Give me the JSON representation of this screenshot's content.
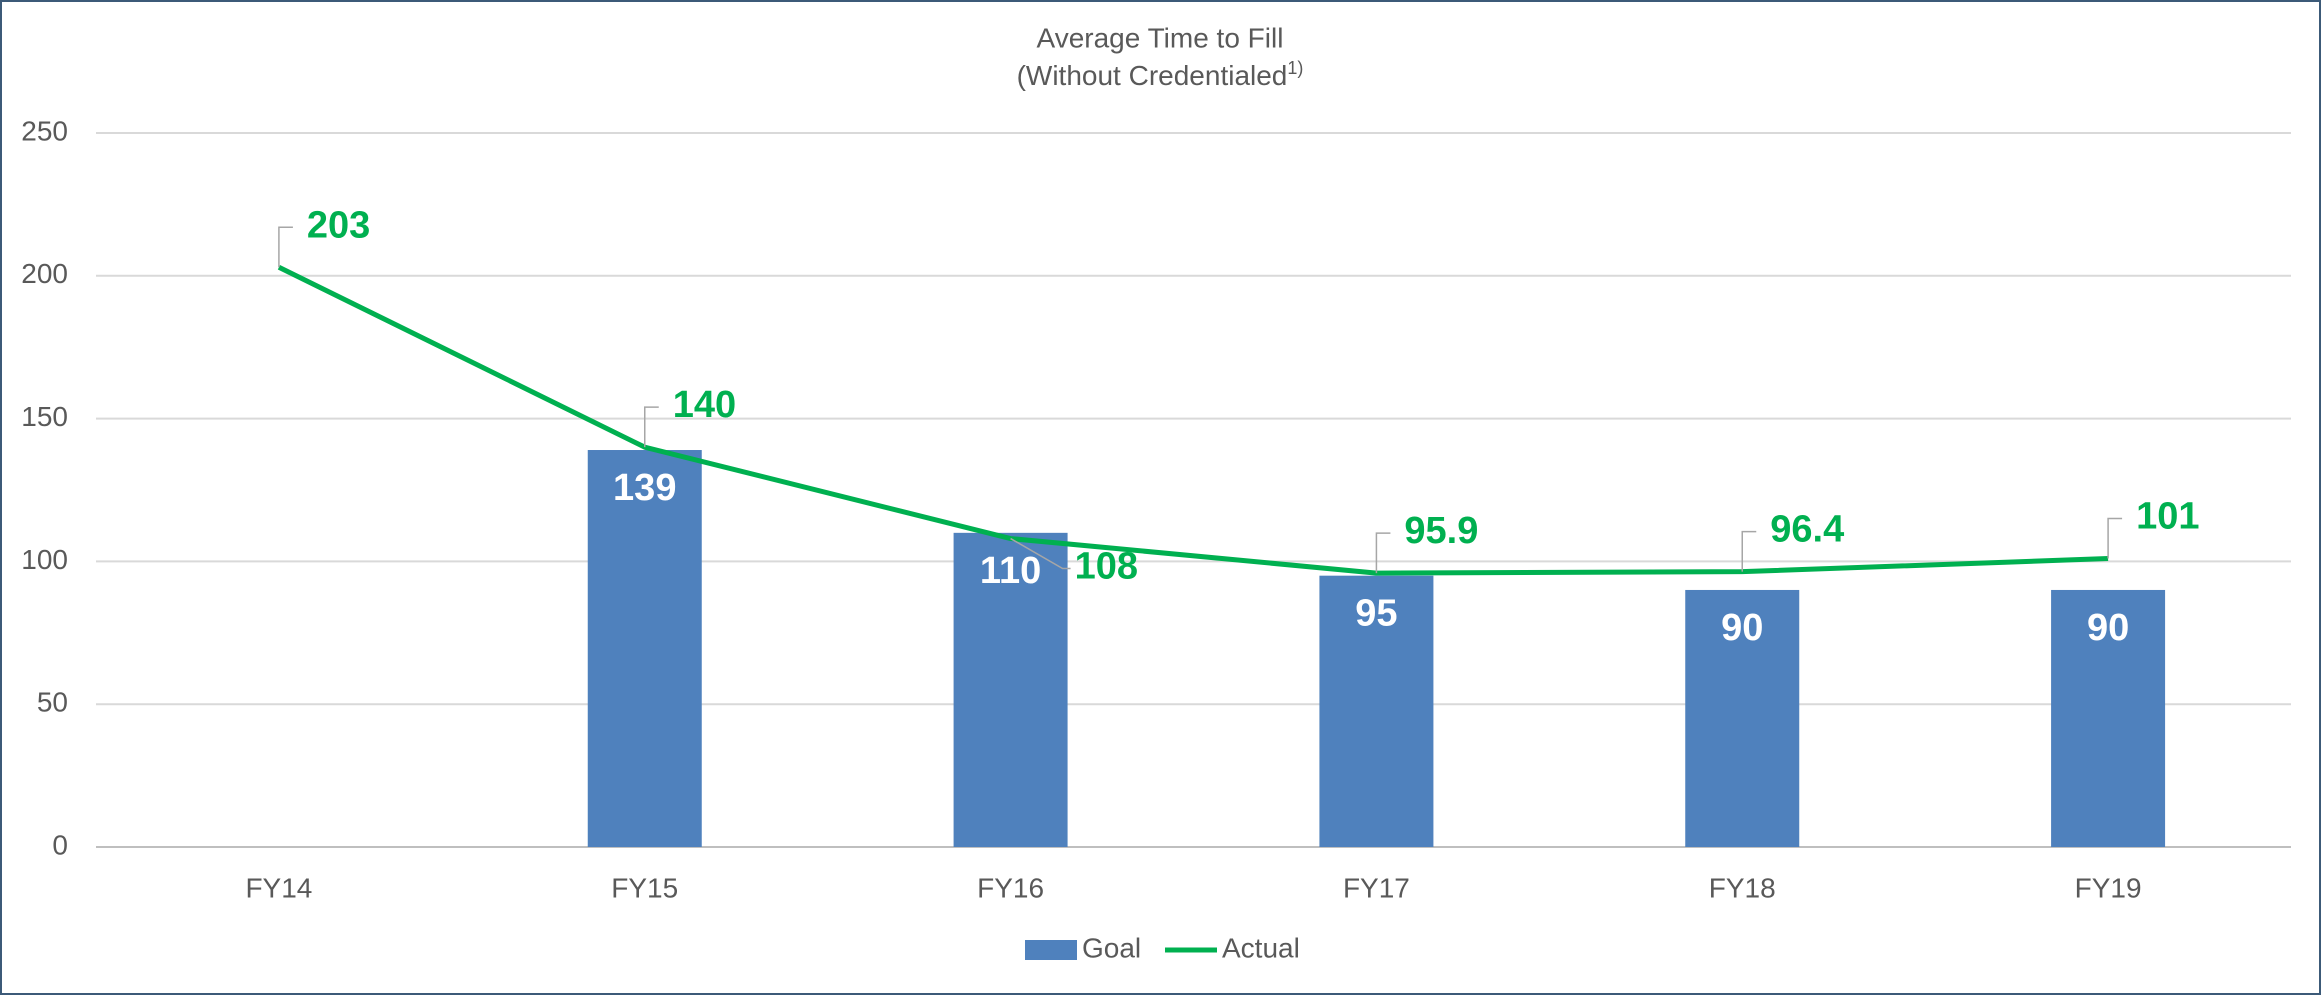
{
  "chart_data": {
    "type": "bar_line",
    "title": "Average Time to Fill",
    "subtitle": "(Without Credentialed",
    "subtitle_superscript": "1)",
    "categories": [
      "FY14",
      "FY15",
      "FY16",
      "FY17",
      "FY18",
      "FY19"
    ],
    "series": [
      {
        "name": "Goal",
        "type": "bar",
        "color": "#4f81bd",
        "values": [
          null,
          139,
          110,
          95,
          90,
          90
        ]
      },
      {
        "name": "Actual",
        "type": "line",
        "color": "#00b050",
        "values": [
          203,
          140,
          108,
          95.9,
          96.4,
          101
        ]
      }
    ],
    "ylim": [
      0,
      250
    ],
    "yticks": [
      0,
      50,
      100,
      150,
      200,
      250
    ],
    "grid": true,
    "legend": "bottom"
  }
}
